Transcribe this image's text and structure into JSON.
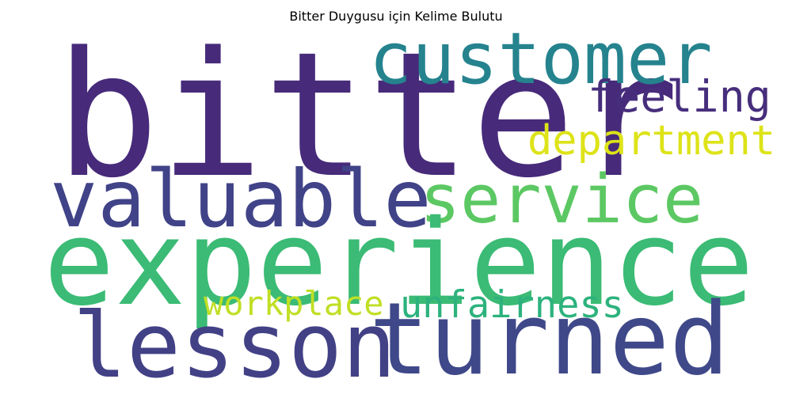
{
  "title": "Bitter Duygusu için Kelime Bulutu",
  "words": [
    {
      "text": "bitter",
      "color": "#472a7a"
    },
    {
      "text": "customer",
      "color": "#25838e"
    },
    {
      "text": "feeling",
      "color": "#472e7c"
    },
    {
      "text": "department",
      "color": "#dde318"
    },
    {
      "text": "valuable",
      "color": "#404387"
    },
    {
      "text": "service",
      "color": "#5cc863"
    },
    {
      "text": "experience",
      "color": "#3bbb75"
    },
    {
      "text": "workplace",
      "color": "#c0df25"
    },
    {
      "text": "unfairness",
      "color": "#2db27d"
    },
    {
      "text": "lesson",
      "color": "#424186"
    },
    {
      "text": "turned",
      "color": "#3f4889"
    }
  ]
}
